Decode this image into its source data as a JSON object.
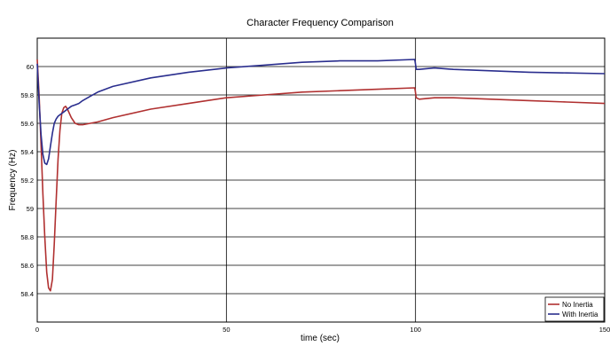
{
  "chart_data": {
    "type": "line",
    "title": "Character Frequency Comparison",
    "xlabel": "time (sec)",
    "ylabel": "Frequency (Hz)",
    "xlim": [
      0,
      150
    ],
    "ylim": [
      58.2,
      60.2
    ],
    "x_ticks": [
      0,
      50,
      100,
      150
    ],
    "x_tick_labels": [
      "0",
      "50",
      "100",
      "150"
    ],
    "y_ticks": [
      58.4,
      58.6,
      58.8,
      59.0,
      59.2,
      59.4,
      59.6,
      59.8,
      60.0
    ],
    "y_tick_labels": [
      "58.4",
      "58.6",
      "58.8",
      "59",
      "59.2",
      "59.4",
      "59.6",
      "59.8",
      "60"
    ],
    "grid": true,
    "legend_position": "bottom-right",
    "series": [
      {
        "name": "No Inertia",
        "color": "#b03030",
        "x": [
          0,
          0.5,
          1,
          1.5,
          2,
          2.5,
          3,
          3.5,
          4,
          4.5,
          5,
          5.5,
          6,
          6.5,
          7,
          7.5,
          8,
          9,
          10,
          11,
          12,
          14,
          16,
          20,
          30,
          40,
          50,
          60,
          70,
          80,
          90,
          99.8,
          100.2,
          101,
          105,
          110,
          120,
          130,
          140,
          150
        ],
        "y": [
          60.05,
          59.8,
          59.45,
          59.1,
          58.8,
          58.55,
          58.44,
          58.42,
          58.5,
          58.75,
          59.05,
          59.35,
          59.55,
          59.67,
          59.71,
          59.72,
          59.7,
          59.64,
          59.6,
          59.59,
          59.59,
          59.6,
          59.61,
          59.64,
          59.7,
          59.74,
          59.78,
          59.8,
          59.82,
          59.83,
          59.84,
          59.85,
          59.78,
          59.77,
          59.78,
          59.78,
          59.77,
          59.76,
          59.75,
          59.74
        ]
      },
      {
        "name": "With Inertia",
        "color": "#2a2e8e",
        "x": [
          0,
          0.5,
          1,
          1.5,
          2,
          2.5,
          3,
          3.5,
          4,
          4.5,
          5,
          5.5,
          6,
          7,
          8,
          9,
          10,
          11,
          12,
          14,
          16,
          20,
          30,
          40,
          50,
          60,
          70,
          80,
          90,
          99.8,
          100.2,
          101,
          105,
          110,
          120,
          130,
          140,
          150
        ],
        "y": [
          60.02,
          59.75,
          59.52,
          59.38,
          59.32,
          59.31,
          59.35,
          59.44,
          59.53,
          59.6,
          59.63,
          59.65,
          59.66,
          59.68,
          59.7,
          59.72,
          59.73,
          59.74,
          59.76,
          59.79,
          59.82,
          59.86,
          59.92,
          59.96,
          59.99,
          60.01,
          60.03,
          60.04,
          60.04,
          60.05,
          59.98,
          59.98,
          59.99,
          59.98,
          59.97,
          59.96,
          59.955,
          59.95
        ]
      }
    ]
  }
}
